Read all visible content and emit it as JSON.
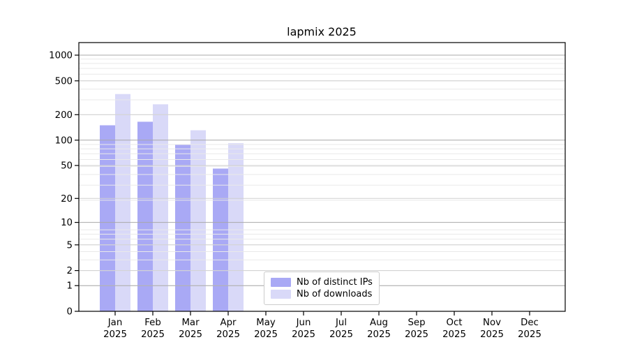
{
  "chart_data": {
    "type": "bar",
    "title": "lapmix 2025",
    "x_months": [
      "Jan",
      "Feb",
      "Mar",
      "Apr",
      "May",
      "Jun",
      "Jul",
      "Aug",
      "Sep",
      "Oct",
      "Nov",
      "Dec"
    ],
    "x_year": "2025",
    "series": [
      {
        "name": "Nb of distinct IPs",
        "color": "#a9a9f5",
        "values": [
          150,
          165,
          88,
          46,
          0,
          0,
          0,
          0,
          0,
          0,
          0,
          0
        ]
      },
      {
        "name": "Nb of downloads",
        "color": "#d9d9f8",
        "values": [
          350,
          265,
          131,
          92,
          0,
          0,
          0,
          0,
          0,
          0,
          0,
          0
        ]
      }
    ],
    "y_ticks": [
      0,
      1,
      2,
      5,
      10,
      20,
      50,
      100,
      200,
      500,
      1000
    ],
    "y_scale": "log10(1+value)",
    "ylim": [
      0,
      1000
    ],
    "grid": true,
    "grid_above_bars": true,
    "legend_position": "bottom-center",
    "colors": {
      "axis": "#000000",
      "grid_decade": "#a8a8a8",
      "grid_labeled": "#d0d0d0",
      "grid_minor": "#e9e9e9",
      "text": "#000000"
    }
  }
}
